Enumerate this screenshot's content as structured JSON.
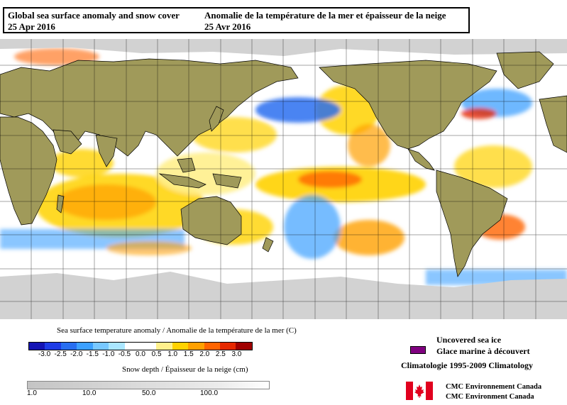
{
  "title": {
    "en_line1": "Global sea surface anomaly and snow cover",
    "en_line2": "25 Apr 2016",
    "fr_line1": "Anomalie de la température de la mer et épaisseur de la neige",
    "fr_line2": "25 Avr 2016"
  },
  "sst_legend": {
    "title": "Sea surface temperature anomaly / Anomalie de la température de la mer (C)",
    "ticks": [
      "-3.0",
      "-2.5",
      "-2.0",
      "-1.5",
      "-1.0",
      "-0.5",
      "0.0",
      "0.5",
      "1.0",
      "1.5",
      "2.0",
      "2.5",
      "3.0"
    ],
    "colors": [
      "#1414b4",
      "#1e3ce6",
      "#286ef0",
      "#3ca0ff",
      "#78c8ff",
      "#aae6ff",
      "#ffffff",
      "#ffffff",
      "#fff08c",
      "#ffd200",
      "#ffa000",
      "#ff6400",
      "#e62800",
      "#a00000"
    ]
  },
  "snow_legend": {
    "title": "Snow depth / Épaisseur de la neige (cm)",
    "ticks": [
      "1.0",
      "10.0",
      "50.0",
      "100.0"
    ]
  },
  "sea_ice": {
    "label_en": "Uncovered sea ice",
    "label_fr": "Glace marine à découvert",
    "color": "#800080"
  },
  "climatology": "Climatologie 1995-2009 Climatology",
  "credits": {
    "line1": "CMC Environnement Canada",
    "line2": "CMC Environment Canada"
  },
  "map_colors": {
    "land": "#a09a5a",
    "snow": "#d2d2d2",
    "border": "#000000",
    "grid": "#000000"
  }
}
